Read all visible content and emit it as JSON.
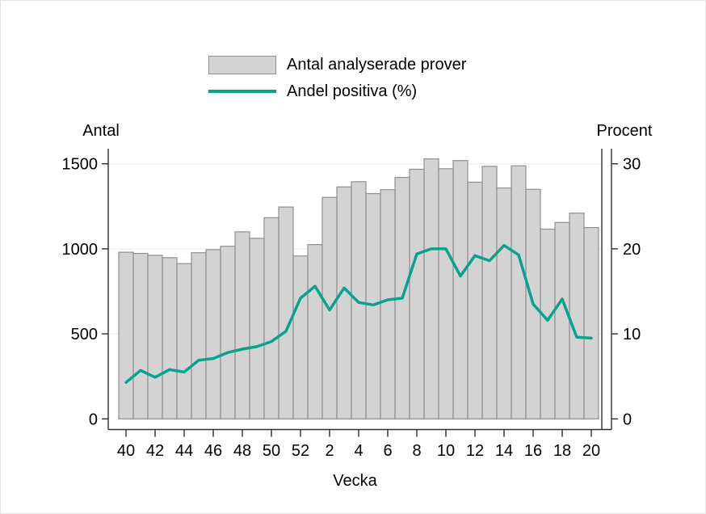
{
  "figure": {
    "background": "#ffffff",
    "border_color": "#e3e3e3"
  },
  "colors": {
    "bar_fill": "#d3d3d3",
    "bar_border": "#8f8f8f",
    "line": "#0aa28a",
    "grid": "#eaf0f3",
    "axis": "#2f2f2f",
    "text": "#000000"
  },
  "chart_data": {
    "type": "combo-bar-line",
    "xlabel": "Vecka",
    "categories": [
      40,
      41,
      42,
      43,
      44,
      45,
      46,
      47,
      48,
      49,
      50,
      51,
      52,
      1,
      2,
      3,
      4,
      5,
      6,
      7,
      8,
      9,
      10,
      11,
      12,
      13,
      14,
      15,
      16,
      17,
      18,
      19,
      20
    ],
    "x_tick_labels": [
      "40",
      "42",
      "44",
      "46",
      "48",
      "50",
      "52",
      "2",
      "4",
      "6",
      "8",
      "10",
      "12",
      "14",
      "16",
      "18",
      "20"
    ],
    "series": [
      {
        "name": "Antal analyserade prover",
        "type": "bar",
        "axis": "left",
        "values": [
          980,
          973,
          962,
          948,
          913,
          977,
          995,
          1015,
          1100,
          1062,
          1183,
          1246,
          958,
          1025,
          1303,
          1364,
          1395,
          1325,
          1348,
          1420,
          1468,
          1529,
          1471,
          1519,
          1392,
          1485,
          1358,
          1488,
          1350,
          1116,
          1155,
          1210,
          1125
        ]
      },
      {
        "name": "Andel positiva (%)",
        "type": "line",
        "axis": "right",
        "values": [
          4.3,
          5.7,
          4.9,
          5.8,
          5.5,
          6.9,
          7.1,
          7.8,
          8.2,
          8.5,
          9.1,
          10.3,
          14.2,
          15.6,
          12.8,
          15.4,
          13.7,
          13.4,
          14.0,
          14.2,
          19.4,
          20.0,
          20.0,
          16.8,
          19.2,
          18.6,
          20.4,
          19.3,
          13.5,
          11.6,
          14.1,
          9.6,
          9.5
        ]
      }
    ],
    "left_axis": {
      "label": "Antal",
      "ticks": [
        0,
        500,
        1000,
        1500
      ],
      "range": [
        0,
        1590
      ]
    },
    "right_axis": {
      "label": "Procent",
      "ticks": [
        0,
        10,
        20,
        30
      ],
      "range": [
        0,
        31.8
      ]
    },
    "grid": "horizontal",
    "legend_position": "top-center"
  }
}
